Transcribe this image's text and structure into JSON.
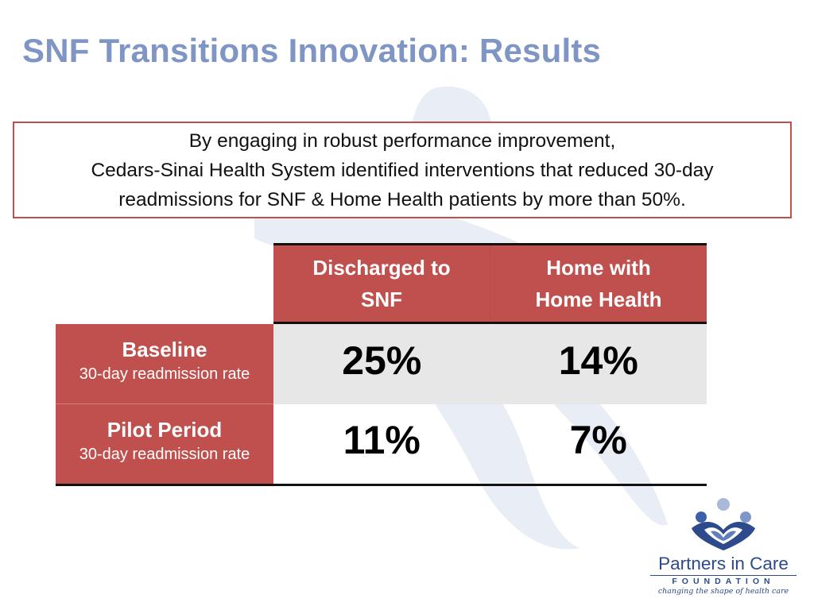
{
  "slide": {
    "title": "SNF Transitions Innovation:  Results"
  },
  "callout": {
    "lines": [
      "By engaging in robust performance improvement,",
      "Cedars-Sinai Health System identified interventions that reduced 30-day",
      "readmissions for SNF & Home Health patients by more than 50%."
    ]
  },
  "results_table": {
    "columns": [
      {
        "line1": "Discharged to",
        "line2": "SNF"
      },
      {
        "line1": "Home with",
        "line2": "Home Health"
      }
    ],
    "rows": [
      {
        "label": "Baseline",
        "sublabel": "30-day readmission rate",
        "values": [
          "25%",
          "14%"
        ]
      },
      {
        "label": "Pilot Period",
        "sublabel": "30-day readmission rate",
        "values": [
          "11%",
          "7%"
        ]
      }
    ]
  },
  "logo": {
    "name": "Partners in Care",
    "foundation": "FOUNDATION",
    "tagline": "changing the shape of health care"
  },
  "colors": {
    "title": "#7f95c4",
    "accent_red": "#c0504d",
    "shaded_row": "#e7e7e7",
    "logo_blue": "#2c4a8c"
  },
  "icons": [
    "watermark-figure-graphic",
    "partners-in-care-logo-icon"
  ]
}
